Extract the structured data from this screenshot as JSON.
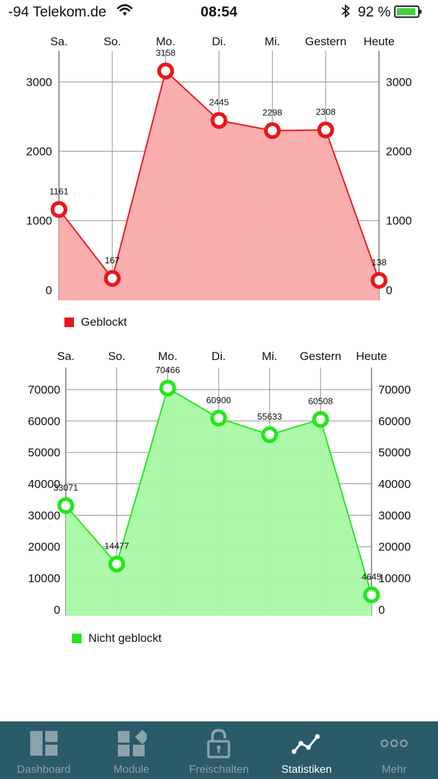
{
  "status_bar": {
    "carrier": "-94 Telekom.de",
    "time": "08:54",
    "battery": "92 %",
    "battery_level": 0.92
  },
  "charts": [
    {
      "legend": "Geblockt",
      "color": "#e8161a",
      "fill": "#fbaaaa"
    },
    {
      "legend": "Nicht geblockt",
      "color": "#22e81a",
      "fill": "#a9f9a5"
    }
  ],
  "chart_data": [
    {
      "type": "area",
      "categories": [
        "Sa.",
        "So.",
        "Mo.",
        "Di.",
        "Mi.",
        "Gestern",
        "Heute"
      ],
      "series": [
        {
          "name": "Geblockt",
          "values": [
            1161,
            167,
            3158,
            2445,
            2298,
            2308,
            138
          ]
        }
      ],
      "data_labels": [
        "1161",
        "167",
        "3158",
        "2445",
        "2298",
        "2308",
        "138"
      ],
      "y_ticks": [
        "0",
        "1000",
        "2000",
        "3000"
      ],
      "ylim": [
        -150,
        3450
      ],
      "grid": true,
      "legend_position": "bottom-left",
      "color": "#e8161a"
    },
    {
      "type": "area",
      "categories": [
        "Sa.",
        "So.",
        "Mo.",
        "Di.",
        "Mi.",
        "Gestern",
        "Heute"
      ],
      "series": [
        {
          "name": "Nicht geblockt",
          "values": [
            33071,
            14477,
            70466,
            60900,
            55633,
            60508,
            4645
          ]
        }
      ],
      "data_labels": [
        "33071",
        "14477",
        "70466",
        "60900",
        "55633",
        "60508",
        "4645"
      ],
      "y_ticks": [
        "0",
        "10000",
        "20000",
        "30000",
        "40000",
        "50000",
        "60000",
        "70000"
      ],
      "ylim": [
        -2000,
        77000
      ],
      "grid": true,
      "legend_position": "bottom-left",
      "color": "#22e81a"
    }
  ],
  "tab_bar": {
    "items": [
      {
        "label": "Dashboard",
        "icon": "dashboard-icon",
        "active": false
      },
      {
        "label": "Module",
        "icon": "module-icon",
        "active": false
      },
      {
        "label": "Freischalten",
        "icon": "lock-icon",
        "active": false
      },
      {
        "label": "Statistiken",
        "icon": "statistics-icon",
        "active": true
      },
      {
        "label": "Mehr",
        "icon": "more-icon",
        "active": false
      }
    ]
  }
}
